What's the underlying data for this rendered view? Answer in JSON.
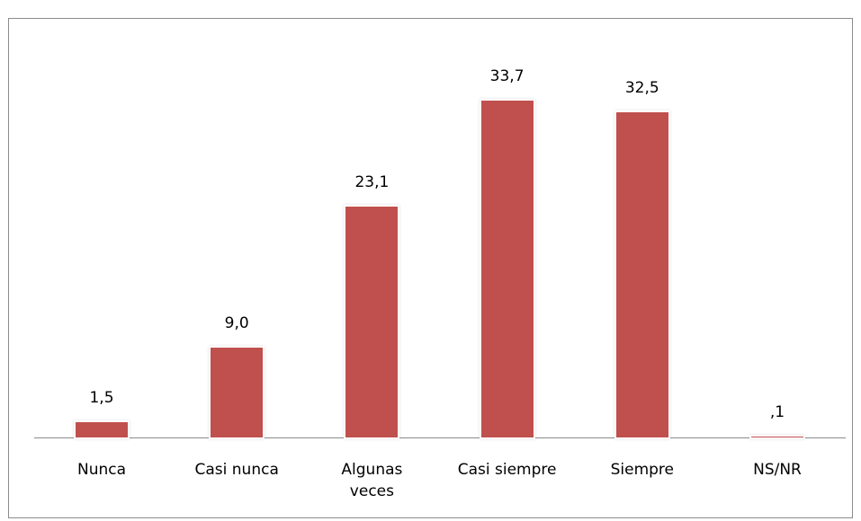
{
  "chart_data": {
    "type": "bar",
    "categories": [
      "Nunca",
      "Casi nunca",
      "Algunas veces",
      "Casi siempre",
      "Siempre",
      "NS/NR"
    ],
    "values": [
      1.5,
      9.0,
      23.1,
      33.7,
      32.5,
      0.1
    ],
    "value_labels": [
      "1,5",
      "9,0",
      "23,1",
      "33,7",
      "32,5",
      ",1"
    ],
    "color": "#c0504d"
  }
}
